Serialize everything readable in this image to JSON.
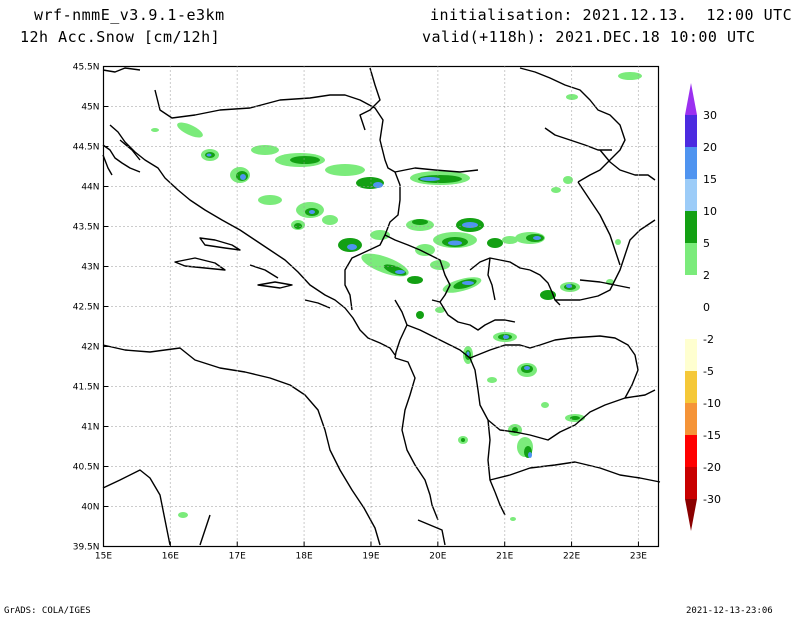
{
  "header": {
    "model": "wrf-nmmE_v3.9.1-e3km",
    "field": "12h Acc.Snow [cm/12h]",
    "init": "initialisation: 2021.12.13.  12:00 UTC",
    "valid": "valid(+118h): 2021.DEC.18 10:00 UTC"
  },
  "footer": {
    "credit": "GrADS: COLA/IGES",
    "timestamp": "2021-12-13-23:06"
  },
  "map": {
    "lon_ticks": [
      "15E",
      "16E",
      "17E",
      "18E",
      "19E",
      "20E",
      "21E",
      "22E",
      "23E"
    ],
    "lat_ticks": [
      "45.5N",
      "45N",
      "44.5N",
      "44N",
      "43.5N",
      "43N",
      "42.5N",
      "42N",
      "41.5N",
      "41N",
      "40.5N",
      "40N",
      "39.5N"
    ],
    "lon_range": [
      15,
      23.3
    ],
    "lat_range": [
      39.5,
      45.5
    ]
  },
  "colorbar": {
    "levels": [
      {
        "label": "30",
        "color": "#4B2BE0"
      },
      {
        "label": "20",
        "color": "#4F94F0"
      },
      {
        "label": "15",
        "color": "#9CCCF8"
      },
      {
        "label": "10",
        "color": "#13A013"
      },
      {
        "label": "5",
        "color": "#7BEB7B"
      },
      {
        "label": "2",
        "color": "#FFFFFF"
      },
      {
        "label": "0",
        "color": "#FFFFFF"
      },
      {
        "label": "-2",
        "color": "#FFFFD0"
      },
      {
        "label": "-5",
        "color": "#F5C838"
      },
      {
        "label": "-10",
        "color": "#F59438"
      },
      {
        "label": "-15",
        "color": "#FF0000"
      },
      {
        "label": "-20",
        "color": "#C80000"
      },
      {
        "label": "-30",
        "color": "#8A0000"
      }
    ],
    "top_arrow_color": "#9B30F0",
    "bottom_arrow_color": "#8A0000"
  }
}
